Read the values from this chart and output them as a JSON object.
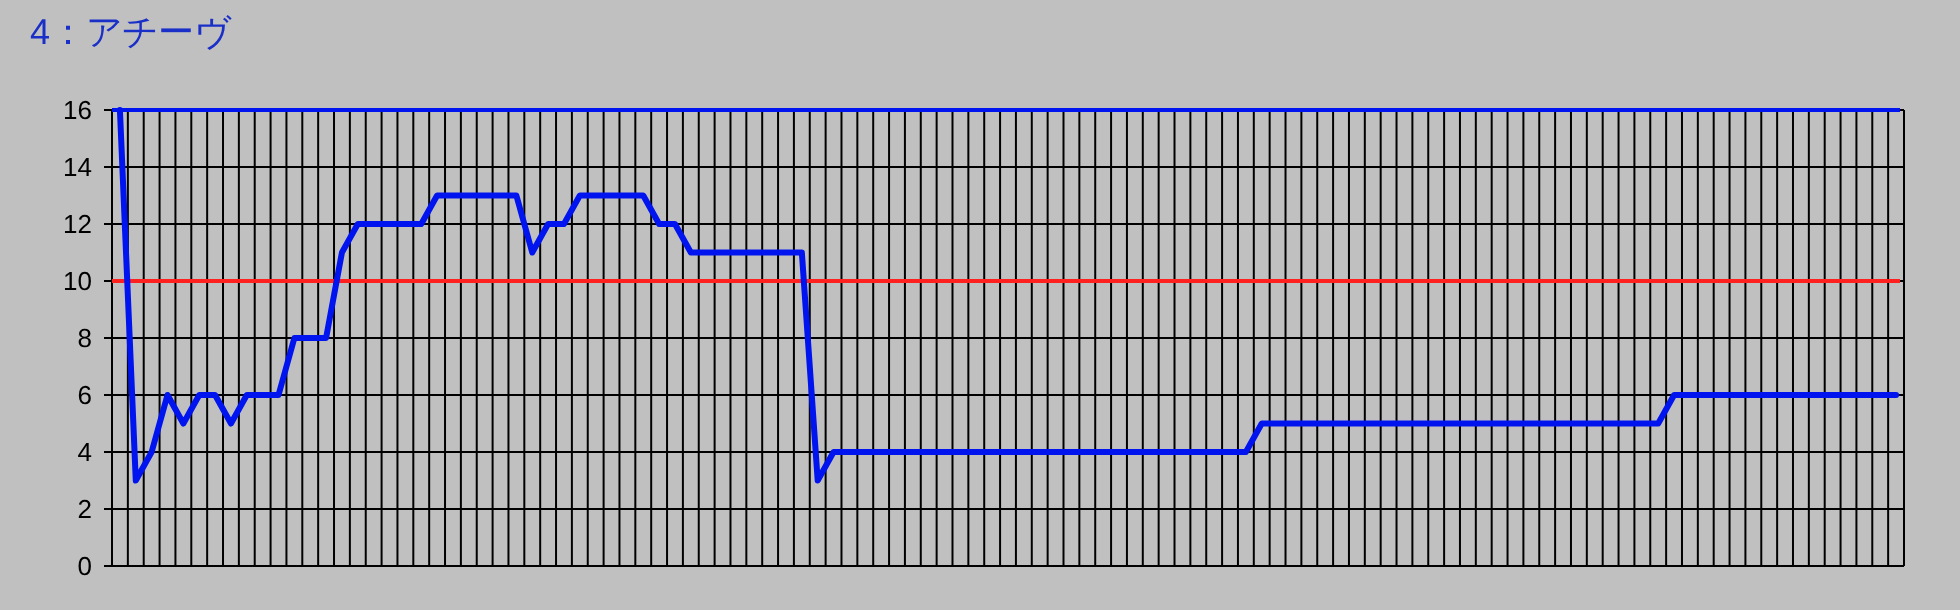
{
  "chart_data": {
    "type": "line",
    "title": "4：アチーヴ",
    "categories": [
      null,
      null,
      null,
      null,
      null,
      null,
      null,
      null,
      null,
      null,
      null,
      null,
      null,
      null,
      null,
      null,
      null,
      null,
      null,
      null,
      null,
      null,
      null,
      null,
      null,
      null,
      null,
      null,
      null,
      null,
      null,
      null,
      null,
      null,
      null,
      null,
      null,
      null,
      null,
      null,
      null,
      null,
      null,
      null,
      null,
      null,
      null,
      null,
      null,
      null,
      null,
      null,
      null,
      null,
      null,
      null,
      null,
      null,
      null,
      null,
      null,
      null,
      null,
      null,
      null,
      null,
      null,
      null,
      null,
      null,
      null,
      null,
      null,
      null,
      null,
      null,
      null,
      null,
      null,
      null,
      null,
      null,
      null,
      null,
      null,
      null,
      null,
      null,
      null,
      null,
      null,
      null,
      null,
      null,
      null,
      null,
      null,
      null,
      null,
      null,
      null,
      null,
      null,
      null,
      null,
      null,
      null,
      null,
      null,
      null,
      null,
      null,
      null
    ],
    "series": [
      {
        "color": "#0014f0",
        "values": [
          16,
          3,
          4,
          6,
          5,
          6,
          6,
          5,
          6,
          6,
          6,
          8,
          8,
          8,
          11,
          12,
          12,
          12,
          12,
          12,
          13,
          13,
          13,
          13,
          13,
          13,
          11,
          12,
          12,
          13,
          13,
          13,
          13,
          13,
          12,
          12,
          11,
          11,
          11,
          11,
          11,
          11,
          11,
          11,
          3,
          4,
          4,
          4,
          4,
          4,
          4,
          4,
          4,
          4,
          4,
          4,
          4,
          4,
          4,
          4,
          4,
          4,
          4,
          4,
          4,
          4,
          4,
          4,
          4,
          4,
          4,
          4,
          5,
          5,
          5,
          5,
          5,
          5,
          5,
          5,
          5,
          5,
          5,
          5,
          5,
          5,
          5,
          5,
          5,
          5,
          5,
          5,
          5,
          5,
          5,
          5,
          5,
          5,
          6,
          6,
          6,
          6,
          6,
          6,
          6,
          6,
          6,
          6,
          6,
          6,
          6,
          6,
          6
        ]
      }
    ],
    "ylim": [
      0,
      16
    ],
    "yticks": [
      0,
      2,
      4,
      6,
      8,
      10,
      12,
      14,
      16
    ],
    "grid": true,
    "tick_labels": "y",
    "marker": "none",
    "line_style": "solid",
    "ref_lines": [
      {
        "axis": "y",
        "value": 10,
        "color": "#ff2020"
      },
      {
        "axis": "y",
        "value": 16,
        "color": "#0014f0"
      }
    ]
  }
}
